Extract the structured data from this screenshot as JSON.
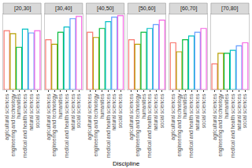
{
  "chart_data": {
    "type": "bar",
    "x_label": "Discipline",
    "categories": [
      "agricultural sciences",
      "engineering and technology",
      "humanities",
      "medical and health sciences",
      "natural sciences",
      "social sciences"
    ],
    "colors": [
      "#F8766D",
      "#B79F00",
      "#00BA38",
      "#00BFC4",
      "#619CFF",
      "#F564E3"
    ],
    "ylim": [
      0,
      100
    ],
    "tick_labels": "x",
    "grid": false,
    "facets": [
      {
        "title": "[20,30]",
        "values": [
          78,
          74,
          56,
          80,
          75,
          78
        ]
      },
      {
        "title": "[30,40]",
        "values": [
          66,
          60,
          76,
          83,
          94,
          97
        ]
      },
      {
        "title": "[40,50]",
        "values": [
          76,
          69,
          81,
          90,
          96,
          98
        ]
      },
      {
        "title": "[50,60]",
        "values": [
          66,
          60,
          76,
          81,
          86,
          92
        ]
      },
      {
        "title": "[60,70]",
        "values": [
          62,
          50,
          66,
          71,
          76,
          81
        ]
      },
      {
        "title": "[70,80]",
        "values": [
          34,
          48,
          48,
          52,
          58,
          62
        ]
      }
    ]
  }
}
